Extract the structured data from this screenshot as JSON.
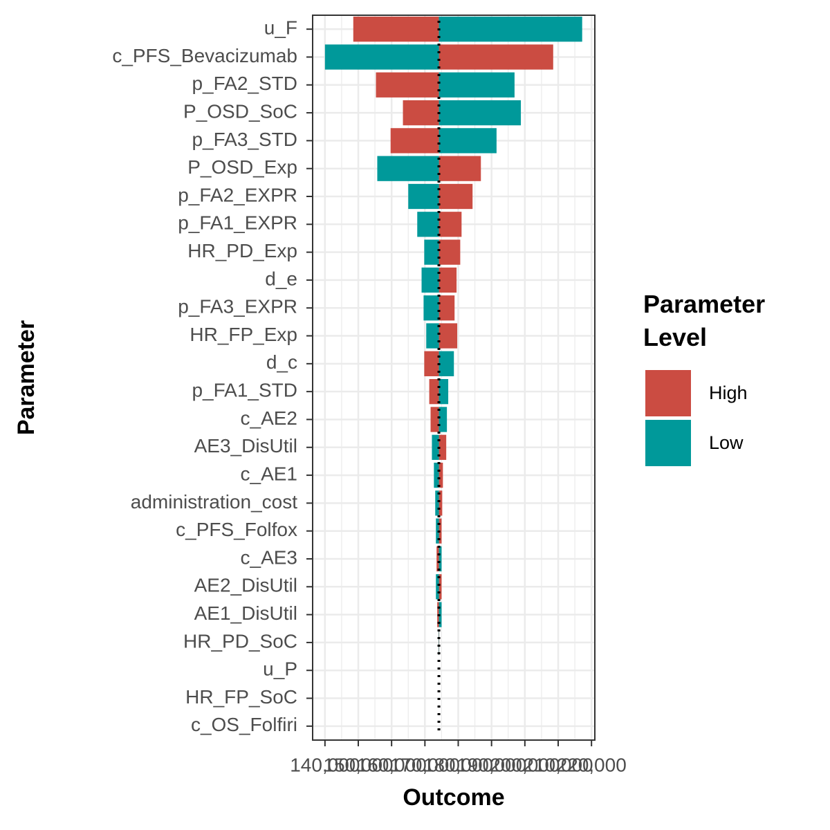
{
  "chart_data": {
    "type": "bar",
    "orientation": "horizontal",
    "x_label": "Outcome",
    "y_label": "Parameter",
    "legend_title": "Parameter Level",
    "legend_position": "right",
    "grid": true,
    "base_value": 174200,
    "categories": [
      "u_F",
      "c_PFS_Bevacizumab",
      "p_FA2_STD",
      "P_OSD_SoC",
      "p_FA3_STD",
      "P_OSD_Exp",
      "p_FA2_EXPR",
      "p_FA1_EXPR",
      "HR_PD_Exp",
      "d_e",
      "p_FA3_EXPR",
      "HR_FP_Exp",
      "d_c",
      "p_FA1_STD",
      "c_AE2",
      "AE3_DisUtil",
      "c_AE1",
      "administration_cost",
      "c_PFS_Folfox",
      "c_AE3",
      "AE2_DisUtil",
      "AE1_DisUtil",
      "HR_PD_SoC",
      "u_P",
      "HR_FP_SoC",
      "c_OS_Folfiri"
    ],
    "series": [
      {
        "name": "High",
        "color": "#cb4c42",
        "values": [
          148500,
          208500,
          155300,
          163400,
          159700,
          186800,
          184300,
          181000,
          180600,
          179500,
          178900,
          179700,
          169800,
          171300,
          171700,
          176400,
          175400,
          175200,
          175000,
          173500,
          175000,
          173700,
          174300,
          174200,
          174200,
          174200
        ]
      },
      {
        "name": "Low",
        "color": "#00999a",
        "values": [
          217200,
          140000,
          196900,
          198800,
          191500,
          155700,
          165000,
          167700,
          169800,
          169000,
          169600,
          170400,
          178700,
          177000,
          176600,
          172100,
          172700,
          173100,
          173300,
          175000,
          173300,
          175000,
          174100,
          174200,
          174200,
          174200
        ]
      }
    ],
    "xlim": [
      136300,
      221000
    ],
    "xticks": [
      {
        "value": 140000,
        "label": "140,000"
      },
      {
        "value": 150000,
        "label": "150,000"
      },
      {
        "value": 160000,
        "label": "160,000"
      },
      {
        "value": 170000,
        "label": "170,000"
      },
      {
        "value": 180000,
        "label": "180,000"
      },
      {
        "value": 190000,
        "label": "190,000"
      },
      {
        "value": 200000,
        "label": "200,000"
      },
      {
        "value": 210000,
        "label": "210,000"
      },
      {
        "value": 220000,
        "label": "220,000"
      }
    ]
  }
}
